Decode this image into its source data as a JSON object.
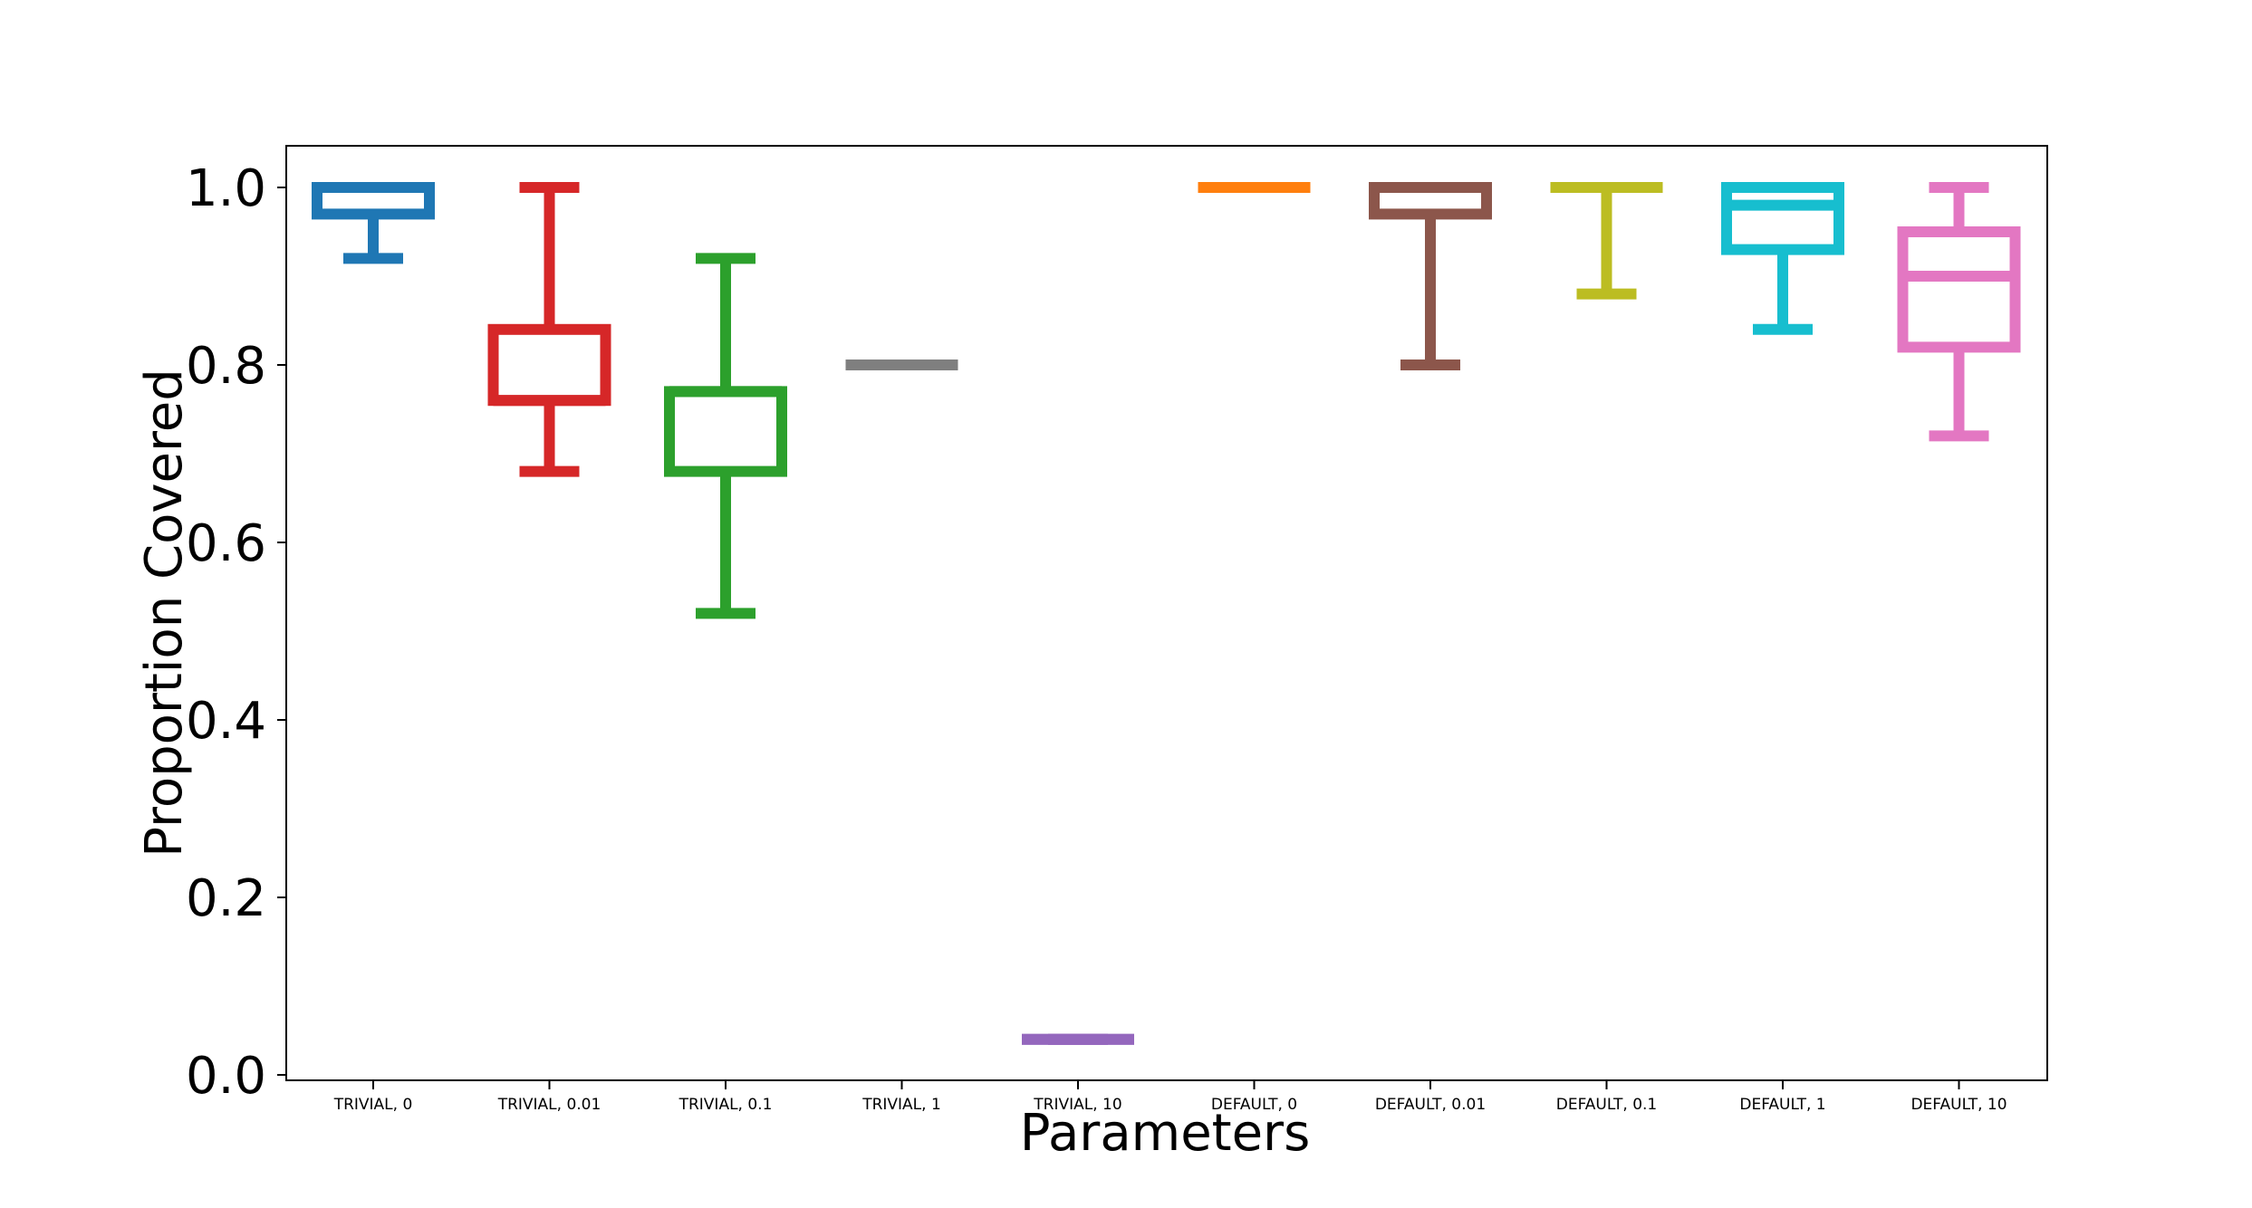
{
  "chart_data": {
    "type": "box",
    "title": "",
    "xlabel": "Parameters",
    "ylabel": "Proportion Covered",
    "ylim": [
      -0.005,
      1.05
    ],
    "yticks": [
      0.0,
      0.2,
      0.4,
      0.6,
      0.8,
      1.0
    ],
    "ytick_labels": [
      "0.0",
      "0.2",
      "0.4",
      "0.6",
      "0.8",
      "1.0"
    ],
    "grid": false,
    "legend": "none",
    "categories": [
      "TRIVIAL, 0",
      "TRIVIAL, 0.01",
      "TRIVIAL, 0.1",
      "TRIVIAL, 1",
      "TRIVIAL, 10",
      "DEFAULT, 0",
      "DEFAULT, 0.01",
      "DEFAULT, 0.1",
      "DEFAULT, 1",
      "DEFAULT, 10"
    ],
    "boxes": [
      {
        "whisker_low": 0.92,
        "q1": 0.97,
        "median": 1.0,
        "q3": 1.0,
        "whisker_high": 1.0,
        "color": "#1f77b4"
      },
      {
        "whisker_low": 0.68,
        "q1": 0.76,
        "median": 0.76,
        "q3": 0.84,
        "whisker_high": 1.0,
        "color": "#d62728"
      },
      {
        "whisker_low": 0.52,
        "q1": 0.68,
        "median": 0.77,
        "q3": 0.77,
        "whisker_high": 0.92,
        "color": "#2ca02c"
      },
      {
        "whisker_low": 0.8,
        "q1": 0.8,
        "median": 0.8,
        "q3": 0.8,
        "whisker_high": 0.8,
        "color": "#7f7f7f"
      },
      {
        "whisker_low": 0.04,
        "q1": 0.04,
        "median": 0.04,
        "q3": 0.04,
        "whisker_high": 0.04,
        "color": "#9467bd"
      },
      {
        "whisker_low": 1.0,
        "q1": 1.0,
        "median": 1.0,
        "q3": 1.0,
        "whisker_high": 1.0,
        "color": "#ff7f0e"
      },
      {
        "whisker_low": 0.8,
        "q1": 0.97,
        "median": 1.0,
        "q3": 1.0,
        "whisker_high": 1.0,
        "color": "#8c564b"
      },
      {
        "whisker_low": 0.88,
        "q1": 1.0,
        "median": 1.0,
        "q3": 1.0,
        "whisker_high": 1.0,
        "color": "#bcbd22"
      },
      {
        "whisker_low": 0.84,
        "q1": 0.93,
        "median": 0.98,
        "q3": 1.0,
        "whisker_high": 1.0,
        "color": "#17becf"
      },
      {
        "whisker_low": 0.72,
        "q1": 0.82,
        "median": 0.9,
        "q3": 0.95,
        "whisker_high": 1.0,
        "color": "#e377c2"
      }
    ]
  }
}
